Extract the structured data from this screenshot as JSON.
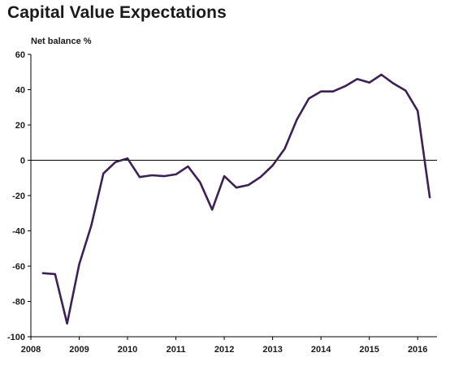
{
  "chart_data": {
    "type": "line",
    "title": "Capital Value Expectations",
    "ylabel": "Net balance %",
    "xlabel": "",
    "ylim": [
      -100,
      60
    ],
    "xlim": [
      2008,
      2016.4
    ],
    "yticks": [
      60,
      40,
      20,
      0,
      -20,
      -40,
      -60,
      -80,
      -100
    ],
    "xticks": [
      2008,
      2009,
      2010,
      2011,
      2012,
      2013,
      2014,
      2015,
      2016
    ],
    "grid": false,
    "zero_line": true,
    "line_color": "#3d1f5c",
    "series": [
      {
        "x": [
          2008.25,
          2008.5,
          2008.75,
          2009.0,
          2009.25,
          2009.5,
          2009.75,
          2010.0,
          2010.25,
          2010.5,
          2010.75,
          2011.0,
          2011.25,
          2011.5,
          2011.75,
          2012.0,
          2012.25,
          2012.5,
          2012.75,
          2013.0,
          2013.25,
          2013.5,
          2013.75,
          2014.0,
          2014.25,
          2014.5,
          2014.75,
          2015.0,
          2015.25,
          2015.5,
          2015.75,
          2016.0,
          2016.25
        ],
        "y": [
          -64,
          -64.5,
          -92.5,
          -59,
          -37,
          -7.5,
          -1,
          1,
          -9.5,
          -8.5,
          -9,
          -8,
          -3.5,
          -12.5,
          -28,
          -9,
          -15.5,
          -14,
          -9.5,
          -3,
          6.5,
          23,
          35,
          39,
          39,
          42,
          46,
          44,
          48.5,
          43.5,
          39.5,
          28,
          -21
        ]
      }
    ]
  }
}
